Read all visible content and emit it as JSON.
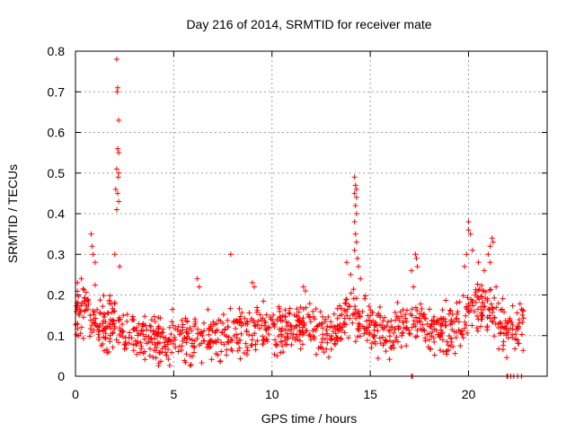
{
  "chart_data": {
    "type": "scatter",
    "title": "Day 216 of 2014, SRMTID for receiver mate",
    "xlabel": "GPS time / hours",
    "ylabel": "SRMTID / TECUs",
    "xlim": [
      0,
      24
    ],
    "ylim": [
      0,
      0.8
    ],
    "xticks": [
      0,
      5,
      10,
      15,
      20
    ],
    "xtick_labels": [
      "0",
      "5",
      "10",
      "15",
      "20"
    ],
    "yticks": [
      0,
      0.1,
      0.2,
      0.3,
      0.4,
      0.5,
      0.6,
      0.7,
      0.8
    ],
    "ytick_labels": [
      "0",
      "0.1",
      "0.2",
      "0.3",
      "0.4",
      "0.5",
      "0.6",
      "0.7",
      "0.8"
    ],
    "grid": true,
    "marker": "plus",
    "series_color": "#ff0000",
    "series": [
      {
        "name": "SRMTID",
        "baseline": [
          [
            0.0,
            0.15
          ],
          [
            0.5,
            0.16
          ],
          [
            1.0,
            0.14
          ],
          [
            1.5,
            0.12
          ],
          [
            2.0,
            0.13
          ],
          [
            2.5,
            0.12
          ],
          [
            3.0,
            0.11
          ],
          [
            3.5,
            0.1
          ],
          [
            4.0,
            0.09
          ],
          [
            4.5,
            0.085
          ],
          [
            5.0,
            0.085
          ],
          [
            5.5,
            0.09
          ],
          [
            6.0,
            0.1
          ],
          [
            6.5,
            0.1
          ],
          [
            7.0,
            0.09
          ],
          [
            7.5,
            0.1
          ],
          [
            8.0,
            0.11
          ],
          [
            8.5,
            0.11
          ],
          [
            9.0,
            0.11
          ],
          [
            9.5,
            0.12
          ],
          [
            10.0,
            0.12
          ],
          [
            10.5,
            0.12
          ],
          [
            11.0,
            0.12
          ],
          [
            11.5,
            0.13
          ],
          [
            12.0,
            0.12
          ],
          [
            12.5,
            0.11
          ],
          [
            13.0,
            0.1
          ],
          [
            13.5,
            0.13
          ],
          [
            14.0,
            0.16
          ],
          [
            14.5,
            0.14
          ],
          [
            15.0,
            0.12
          ],
          [
            15.5,
            0.11
          ],
          [
            16.0,
            0.1
          ],
          [
            16.5,
            0.12
          ],
          [
            17.0,
            0.13
          ],
          [
            17.5,
            0.13
          ],
          [
            18.0,
            0.12
          ],
          [
            18.5,
            0.12
          ],
          [
            19.0,
            0.11
          ],
          [
            19.5,
            0.12
          ],
          [
            20.0,
            0.16
          ],
          [
            20.5,
            0.18
          ],
          [
            21.0,
            0.17
          ],
          [
            21.5,
            0.13
          ],
          [
            22.0,
            0.11
          ],
          [
            22.5,
            0.12
          ],
          [
            22.8,
            0.14
          ]
        ],
        "spikes": [
          [
            0.1,
            0.23
          ],
          [
            0.3,
            0.24
          ],
          [
            0.8,
            0.35
          ],
          [
            0.85,
            0.32
          ],
          [
            0.9,
            0.3
          ],
          [
            1.0,
            0.28
          ],
          [
            2.1,
            0.78
          ],
          [
            2.15,
            0.71
          ],
          [
            2.12,
            0.7
          ],
          [
            2.2,
            0.63
          ],
          [
            2.15,
            0.56
          ],
          [
            2.2,
            0.55
          ],
          [
            2.1,
            0.51
          ],
          [
            2.2,
            0.5
          ],
          [
            2.18,
            0.49
          ],
          [
            2.05,
            0.46
          ],
          [
            2.15,
            0.45
          ],
          [
            2.2,
            0.43
          ],
          [
            2.1,
            0.41
          ],
          [
            2.0,
            0.3
          ],
          [
            2.25,
            0.27
          ],
          [
            6.2,
            0.24
          ],
          [
            6.3,
            0.22
          ],
          [
            7.9,
            0.3
          ],
          [
            9.0,
            0.23
          ],
          [
            9.1,
            0.22
          ],
          [
            11.6,
            0.22
          ],
          [
            11.7,
            0.21
          ],
          [
            13.8,
            0.28
          ],
          [
            14.0,
            0.25
          ],
          [
            14.2,
            0.49
          ],
          [
            14.25,
            0.47
          ],
          [
            14.3,
            0.46
          ],
          [
            14.2,
            0.45
          ],
          [
            14.3,
            0.44
          ],
          [
            14.25,
            0.42
          ],
          [
            14.3,
            0.4
          ],
          [
            14.2,
            0.38
          ],
          [
            14.25,
            0.35
          ],
          [
            14.3,
            0.33
          ],
          [
            14.2,
            0.31
          ],
          [
            14.35,
            0.29
          ],
          [
            14.4,
            0.27
          ],
          [
            14.5,
            0.24
          ],
          [
            17.1,
            0.26
          ],
          [
            17.3,
            0.3
          ],
          [
            17.35,
            0.29
          ],
          [
            17.4,
            0.27
          ],
          [
            17.2,
            0.22
          ],
          [
            19.8,
            0.27
          ],
          [
            19.9,
            0.3
          ],
          [
            20.0,
            0.38
          ],
          [
            20.0,
            0.36
          ],
          [
            20.1,
            0.35
          ],
          [
            20.2,
            0.31
          ],
          [
            20.5,
            0.28
          ],
          [
            20.8,
            0.26
          ],
          [
            21.0,
            0.3
          ],
          [
            21.1,
            0.32
          ],
          [
            21.2,
            0.34
          ],
          [
            21.25,
            0.33
          ],
          [
            21.1,
            0.28
          ],
          [
            21.4,
            0.22
          ]
        ],
        "zeros": [
          17.1,
          17.15,
          21.95,
          22.0,
          22.15,
          22.3,
          22.5,
          22.7
        ]
      }
    ]
  }
}
